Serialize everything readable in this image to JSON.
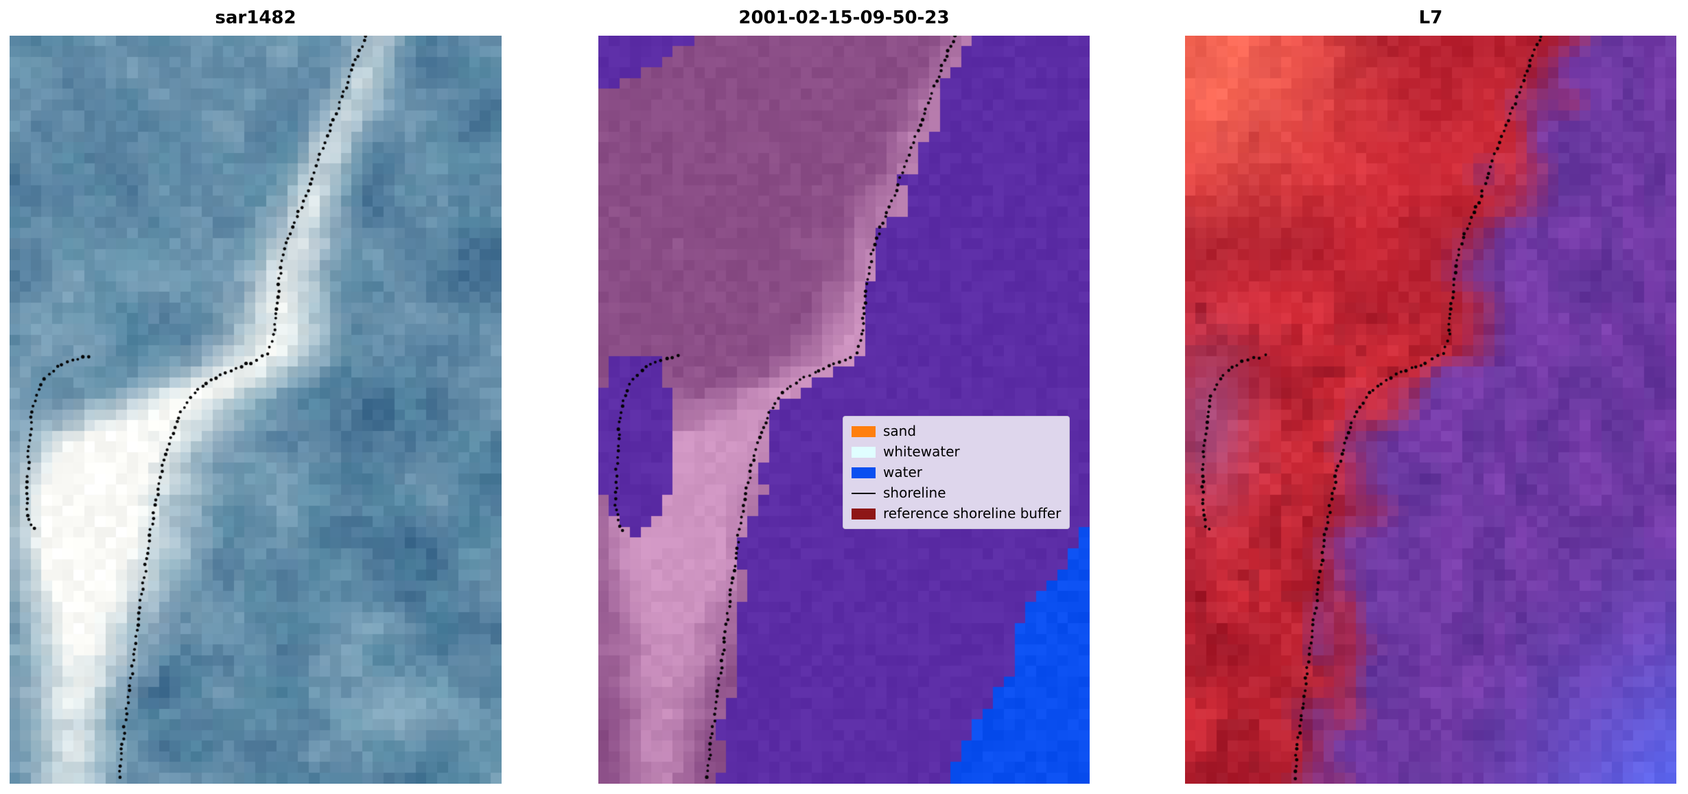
{
  "figure": {
    "background": "#ffffff",
    "panels": [
      {
        "title": "sar1482",
        "type": "rgb-image"
      },
      {
        "title": "2001-02-15-09-50-23",
        "type": "classification-image"
      },
      {
        "title": "L7",
        "type": "rgb-image"
      }
    ]
  },
  "legend": {
    "background": "#ded6ec",
    "border": "#c6bfd6",
    "text_color": "#000000",
    "items": [
      {
        "label": "sand",
        "color": "#ff7f0e",
        "kind": "patch"
      },
      {
        "label": "whitewater",
        "color": "#e0feff",
        "kind": "patch"
      },
      {
        "label": "water",
        "color": "#0a4ff0",
        "kind": "patch"
      },
      {
        "label": "shoreline",
        "color": "#000000",
        "kind": "line"
      },
      {
        "label": "reference shoreline buffer",
        "color": "#8e1616",
        "kind": "patch"
      }
    ]
  },
  "palette": {
    "dot": "#000000",
    "sar_base_dark": "#3f6c90",
    "sar_base_light": "#86abc0",
    "sar_teal": "#4e8aa2",
    "sar_white": "#fcfcf8",
    "class_purple": "#5c2da6",
    "class_blue": "#0a4ff0",
    "buffer_dark": "#8a4d86",
    "buffer_light": "#cf95c2",
    "l7_red": "#d7303c",
    "l7_red_dark": "#a81a2c",
    "l7_red_deep": "#8c1020",
    "l7_salmon": "#ff6e5a",
    "l7_purple": "#7c3fae",
    "l7_purple_dark": "#5f3398",
    "l7_blue": "#5f68f0",
    "l7_lavender": "#9a68b4"
  },
  "chart_data": {
    "type": "image",
    "title": "",
    "panels": [
      {
        "title": "sar1482",
        "content": "SAR backscatter RGB composite, blue water with bright whitewater band"
      },
      {
        "title": "2001-02-15-09-50-23",
        "content": "pixel classification: water (purple/blue), reference shoreline buffer (pink/mauve)"
      },
      {
        "title": "L7",
        "content": "Landsat 7 false-color composite, red land / purple-blue water"
      }
    ],
    "legend_entries": [
      "sand",
      "whitewater",
      "water",
      "shoreline",
      "reference shoreline buffer"
    ],
    "legend_position": "center-right of middle panel",
    "shoreline_main": [
      [
        0.725,
        0.0
      ],
      [
        0.7,
        0.04
      ],
      [
        0.672,
        0.09
      ],
      [
        0.645,
        0.135
      ],
      [
        0.622,
        0.175
      ],
      [
        0.602,
        0.215
      ],
      [
        0.578,
        0.25
      ],
      [
        0.558,
        0.285
      ],
      [
        0.548,
        0.325
      ],
      [
        0.542,
        0.365
      ],
      [
        0.537,
        0.4
      ],
      [
        0.525,
        0.425
      ],
      [
        0.49,
        0.437
      ],
      [
        0.45,
        0.447
      ],
      [
        0.41,
        0.46
      ],
      [
        0.375,
        0.478
      ],
      [
        0.348,
        0.503
      ],
      [
        0.328,
        0.538
      ],
      [
        0.312,
        0.575
      ],
      [
        0.3,
        0.613
      ],
      [
        0.289,
        0.652
      ],
      [
        0.28,
        0.692
      ],
      [
        0.272,
        0.732
      ],
      [
        0.264,
        0.772
      ],
      [
        0.256,
        0.812
      ],
      [
        0.248,
        0.852
      ],
      [
        0.24,
        0.892
      ],
      [
        0.232,
        0.932
      ],
      [
        0.226,
        0.968
      ],
      [
        0.221,
        1.0
      ]
    ],
    "shoreline_loop": [
      [
        0.162,
        0.428
      ],
      [
        0.128,
        0.433
      ],
      [
        0.096,
        0.443
      ],
      [
        0.071,
        0.459
      ],
      [
        0.054,
        0.482
      ],
      [
        0.045,
        0.51
      ],
      [
        0.04,
        0.54
      ],
      [
        0.038,
        0.572
      ],
      [
        0.036,
        0.604
      ],
      [
        0.036,
        0.634
      ],
      [
        0.043,
        0.655
      ],
      [
        0.056,
        0.665
      ]
    ],
    "whitewater_band_center": [
      [
        0.76,
        0.0
      ],
      [
        0.7,
        0.08
      ],
      [
        0.648,
        0.16
      ],
      [
        0.603,
        0.24
      ],
      [
        0.568,
        0.32
      ],
      [
        0.548,
        0.39
      ],
      [
        0.515,
        0.43
      ],
      [
        0.44,
        0.465
      ],
      [
        0.355,
        0.49
      ],
      [
        0.28,
        0.535
      ],
      [
        0.225,
        0.6
      ],
      [
        0.188,
        0.675
      ],
      [
        0.163,
        0.755
      ],
      [
        0.145,
        0.835
      ],
      [
        0.13,
        0.915
      ],
      [
        0.12,
        1.0
      ]
    ]
  }
}
